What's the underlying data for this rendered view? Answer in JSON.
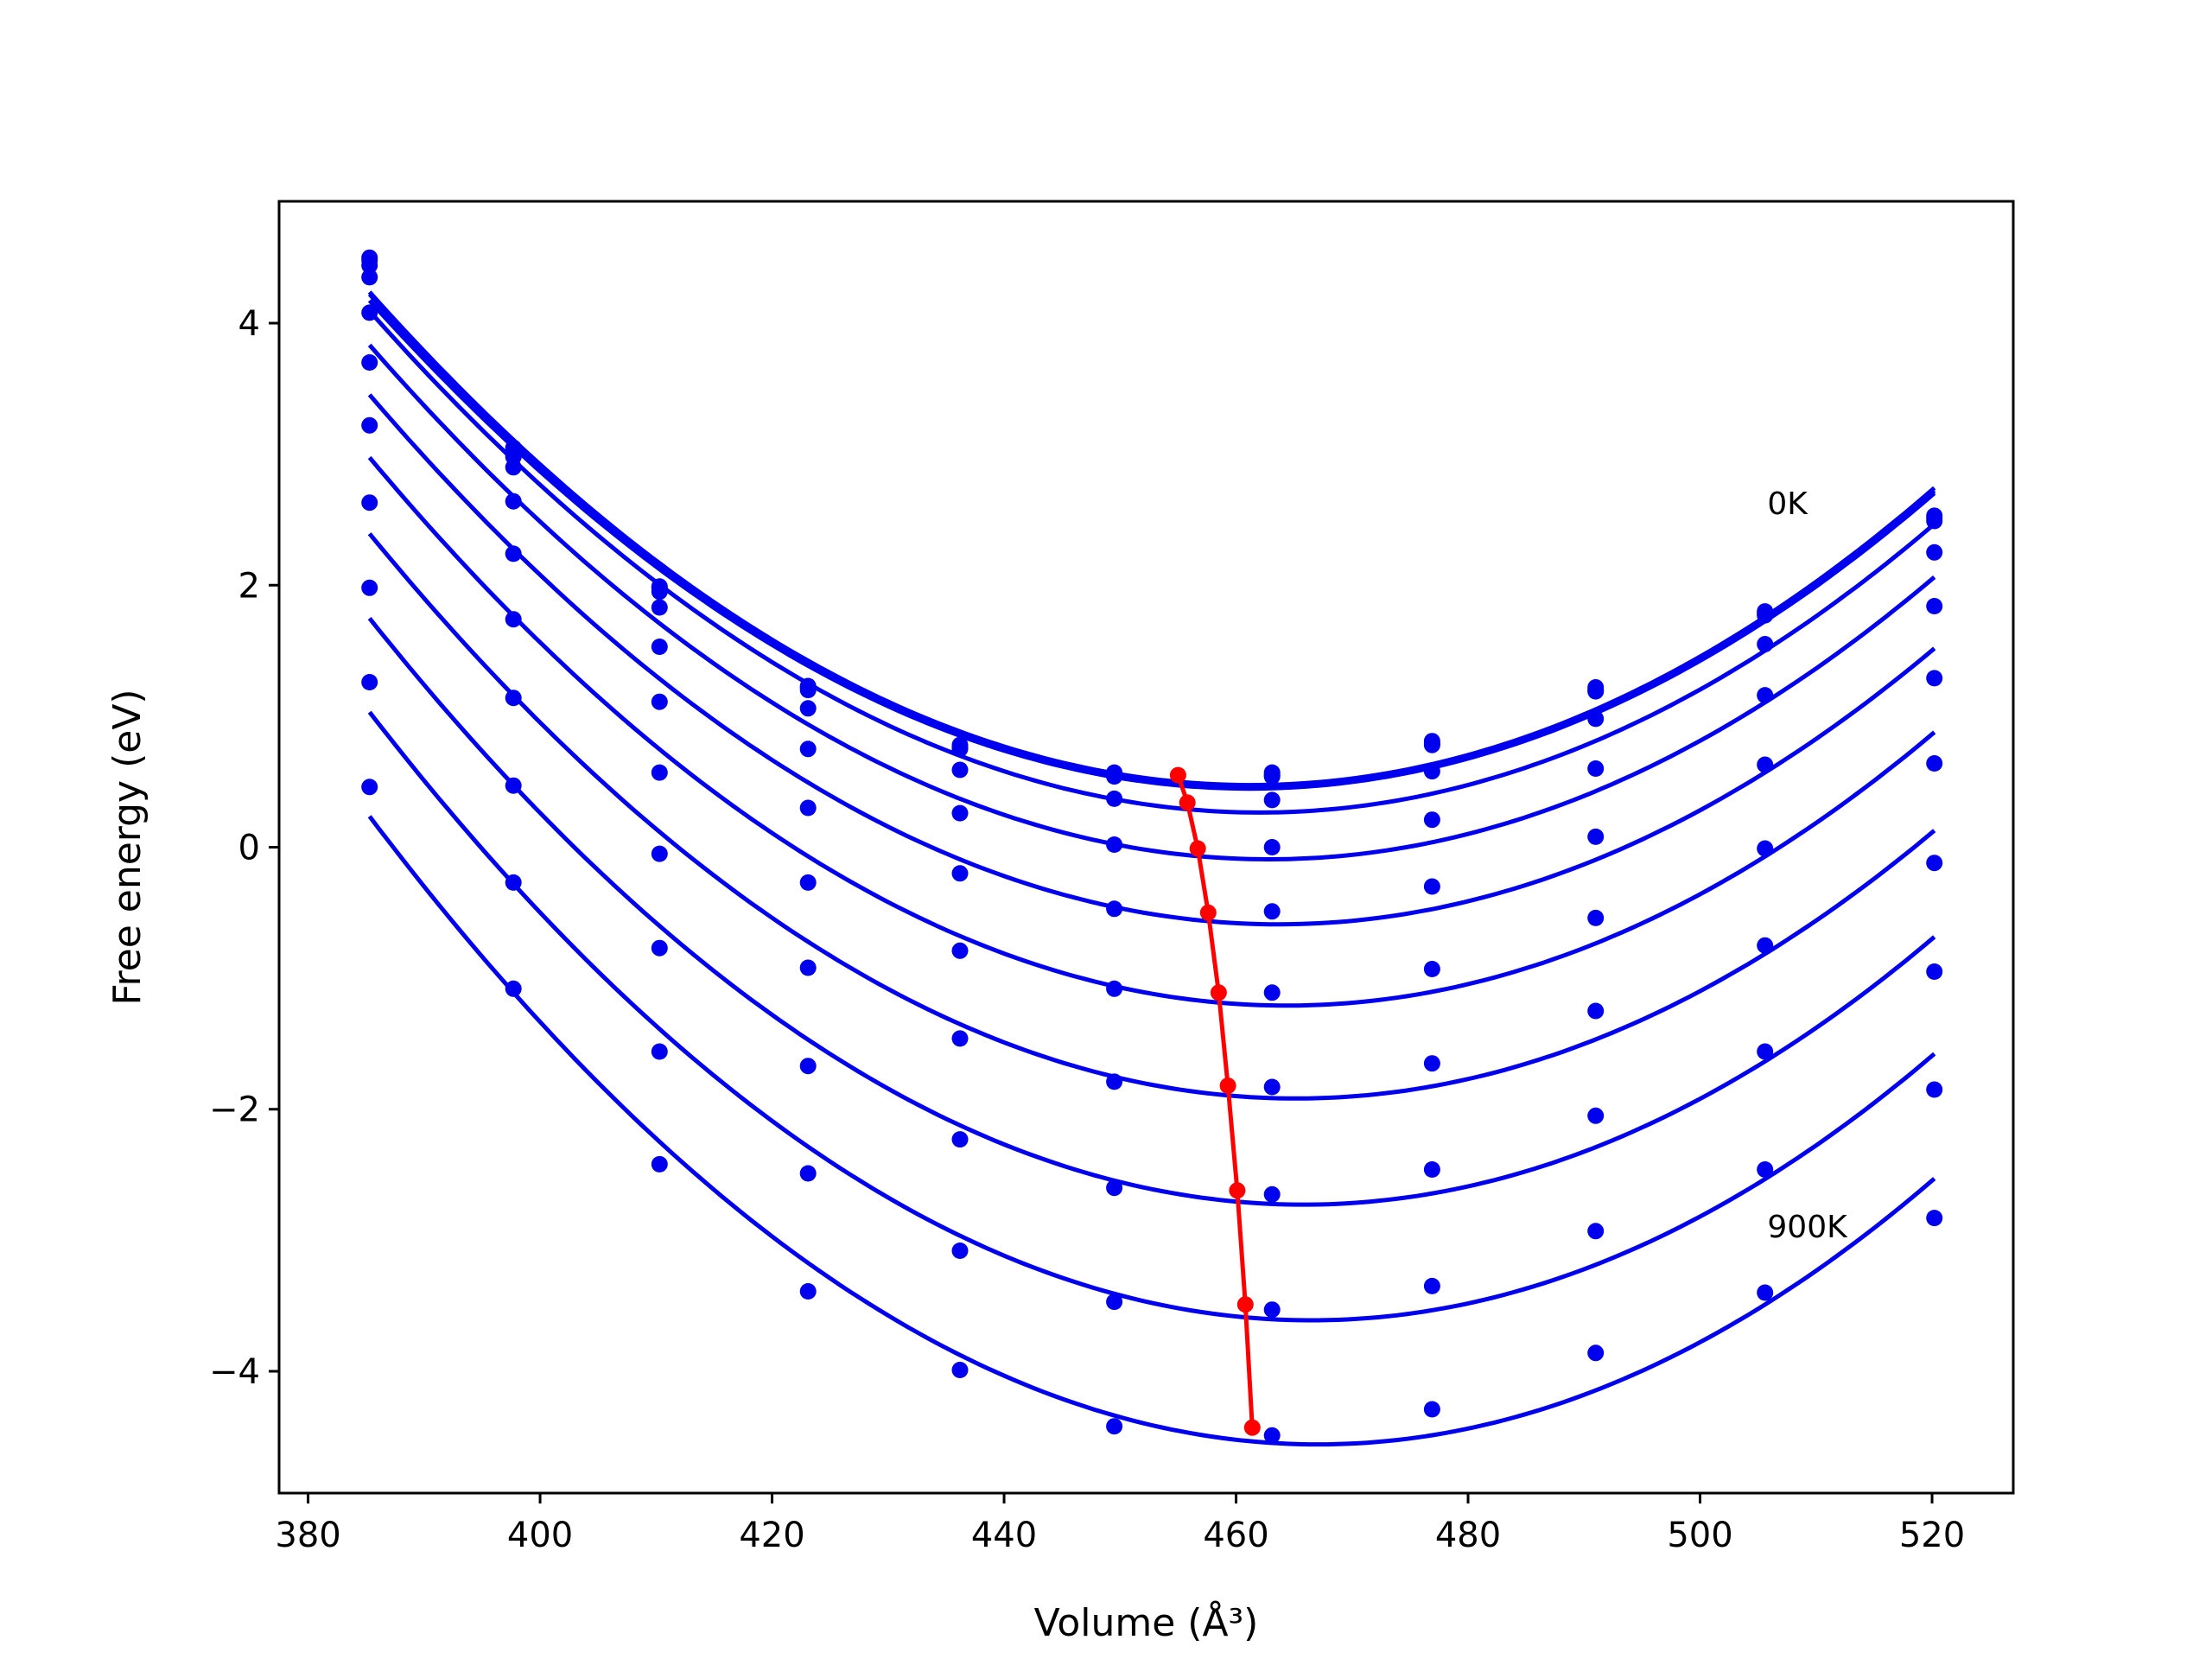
{
  "chart_data": {
    "type": "line",
    "xlabel": "Volume (Å³)",
    "ylabel": "Free energy (eV)",
    "xlim": [
      377.5,
      527
    ],
    "ylim": [
      -4.93,
      4.93
    ],
    "xticks": [
      "380",
      "400",
      "420",
      "440",
      "460",
      "480",
      "500",
      "520"
    ],
    "yticks": [
      "−4",
      "−2",
      "0",
      "2",
      "4"
    ],
    "xtick_values": [
      380,
      400,
      420,
      440,
      460,
      480,
      500,
      520
    ],
    "ytick_values": [
      -4,
      -2,
      0,
      2,
      4
    ],
    "grid": false,
    "x": [
      385.3,
      397.7,
      410.3,
      423.1,
      436.2,
      449.5,
      463.1,
      476.9,
      491.0,
      505.6,
      520.2
    ],
    "series_color": "#0000ee",
    "equilibrium_color": "#ff0000",
    "series": [
      {
        "values": [
          4.5,
          3.05,
          1.99,
          1.23,
          0.78,
          0.57,
          0.57,
          0.81,
          1.22,
          1.8,
          2.53
        ]
      },
      {
        "values": [
          4.48,
          3.03,
          1.98,
          1.22,
          0.76,
          0.55,
          0.55,
          0.79,
          1.2,
          1.78,
          2.51
        ]
      },
      {
        "values": [
          4.44,
          2.98,
          1.95,
          1.2,
          0.75,
          0.54,
          0.54,
          0.78,
          1.19,
          1.77,
          2.49
        ]
      },
      {
        "values": [
          4.35,
          2.9,
          1.83,
          1.06,
          0.59,
          0.37,
          0.36,
          0.58,
          0.98,
          1.55,
          2.25
        ]
      },
      {
        "values": [
          4.08,
          2.64,
          1.53,
          0.75,
          0.26,
          0.02,
          0.0,
          0.21,
          0.6,
          1.16,
          1.84
        ]
      },
      {
        "values": [
          3.7,
          2.24,
          1.11,
          0.3,
          -0.2,
          -0.47,
          -0.49,
          -0.3,
          0.08,
          0.63,
          1.29
        ]
      },
      {
        "values": [
          3.22,
          1.74,
          0.57,
          -0.27,
          -0.79,
          -1.08,
          -1.11,
          -0.93,
          -0.54,
          -0.01,
          0.64
        ]
      },
      {
        "values": [
          2.63,
          1.14,
          -0.05,
          -0.92,
          -1.46,
          -1.79,
          -1.83,
          -1.65,
          -1.25,
          -0.75,
          -0.12
        ]
      },
      {
        "values": [
          1.98,
          0.47,
          -0.77,
          -1.67,
          -2.23,
          -2.6,
          -2.65,
          -2.46,
          -2.05,
          -1.56,
          -0.95
        ]
      },
      {
        "values": [
          1.26,
          -0.27,
          -1.56,
          -2.49,
          -3.08,
          -3.47,
          -3.53,
          -3.35,
          -2.93,
          -2.46,
          -1.85
        ]
      },
      {
        "values": [
          0.46,
          -1.08,
          -2.42,
          -3.39,
          -3.99,
          -4.42,
          -4.49,
          -4.29,
          -3.86,
          -3.4,
          -2.83
        ]
      }
    ],
    "equilibrium": {
      "x": [
        455.0,
        455.8,
        456.7,
        457.6,
        458.5,
        459.3,
        460.1,
        460.8,
        461.4
      ],
      "y": [
        0.55,
        0.34,
        -0.01,
        -0.5,
        -1.11,
        -1.82,
        -2.62,
        -3.49,
        -4.43
      ]
    },
    "annotations": [
      {
        "text": "0K",
        "x": 505.8,
        "y": 2.62
      },
      {
        "text": "900K",
        "x": 505.8,
        "y": -2.9
      }
    ]
  }
}
